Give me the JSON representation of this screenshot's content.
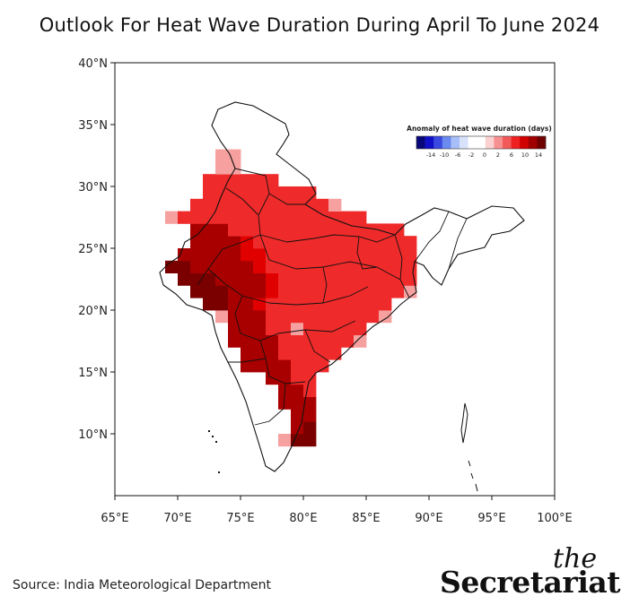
{
  "title": "Outlook For Heat Wave Duration During April To June 2024",
  "source": "Source: India Meteorological Department",
  "brand": {
    "the": "the",
    "name": "Secretariat"
  },
  "map": {
    "lat_ticks": [
      "40°N",
      "35°N",
      "30°N",
      "25°N",
      "20°N",
      "15°N",
      "10°N"
    ],
    "lon_ticks": [
      "65°E",
      "70°E",
      "75°E",
      "80°E",
      "85°E",
      "90°E",
      "95°E",
      "100°E"
    ],
    "extent": {
      "lon": [
        65,
        100
      ],
      "lat": [
        5,
        40
      ]
    },
    "legend": {
      "title": "Anomaly of heat wave duration (days)",
      "tick_labels": [
        "-14",
        "-10",
        "-6",
        "-2",
        "0",
        "2",
        "6",
        "10",
        "14"
      ],
      "colors": [
        "#08087a",
        "#1010c8",
        "#3a4ae0",
        "#6a8af0",
        "#a8bef8",
        "#d8e2fb",
        "#ffffff",
        "#ffffff",
        "#fbd0d0",
        "#f79090",
        "#f25a5a",
        "#ee2020",
        "#d10000",
        "#a00000",
        "#700000"
      ]
    },
    "colors": {
      "light": "#f6a0a0",
      "mid": "#ef2a2a",
      "strong": "#e00000",
      "dark": "#a80000",
      "darkest": "#7a0000"
    }
  }
}
